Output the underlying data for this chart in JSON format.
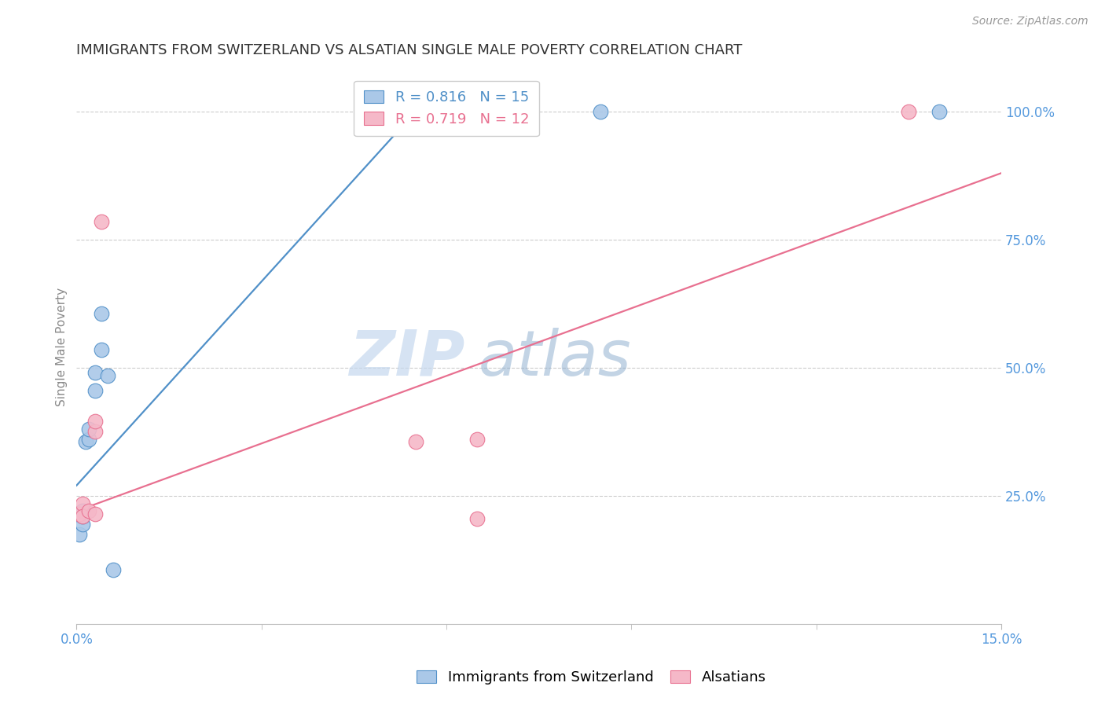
{
  "title": "IMMIGRANTS FROM SWITZERLAND VS ALSATIAN SINGLE MALE POVERTY CORRELATION CHART",
  "source": "Source: ZipAtlas.com",
  "ylabel": "Single Male Poverty",
  "xlim": [
    0.0,
    0.15
  ],
  "ylim": [
    0.0,
    1.08
  ],
  "xticks_major": [
    0.0,
    0.15
  ],
  "xticks_minor": [
    0.03,
    0.06,
    0.09,
    0.12
  ],
  "xticklabels_major": [
    "0.0%",
    "15.0%"
  ],
  "yticks_right": [
    0.25,
    0.5,
    0.75,
    1.0
  ],
  "ytick_right_labels": [
    "25.0%",
    "50.0%",
    "75.0%",
    "100.0%"
  ],
  "blue_scatter_x": [
    0.0005,
    0.001,
    0.001,
    0.001,
    0.0015,
    0.002,
    0.002,
    0.003,
    0.003,
    0.004,
    0.004,
    0.005,
    0.006,
    0.085,
    0.14
  ],
  "blue_scatter_y": [
    0.175,
    0.195,
    0.21,
    0.22,
    0.355,
    0.36,
    0.38,
    0.455,
    0.49,
    0.535,
    0.605,
    0.485,
    0.105,
    1.0,
    1.0
  ],
  "pink_scatter_x": [
    0.0005,
    0.001,
    0.001,
    0.002,
    0.003,
    0.003,
    0.003,
    0.004,
    0.055,
    0.065,
    0.065,
    0.135
  ],
  "pink_scatter_y": [
    0.215,
    0.235,
    0.21,
    0.22,
    0.375,
    0.395,
    0.215,
    0.785,
    0.355,
    0.36,
    0.205,
    1.0
  ],
  "blue_line_x": [
    0.0,
    0.055
  ],
  "blue_line_y": [
    0.27,
    1.0
  ],
  "pink_line_x": [
    0.0,
    0.15
  ],
  "pink_line_y": [
    0.22,
    0.88
  ],
  "blue_color": "#aac8e8",
  "pink_color": "#f5b8c8",
  "blue_line_color": "#5090c8",
  "pink_line_color": "#e87090",
  "blue_r": "R = 0.816",
  "blue_n": "N = 15",
  "pink_r": "R = 0.719",
  "pink_n": "N = 12",
  "legend_blue_label": "Immigrants from Switzerland",
  "legend_pink_label": "Alsatians",
  "watermark_zip": "ZIP",
  "watermark_atlas": "atlas",
  "scatter_size": 180,
  "background_color": "#ffffff",
  "grid_color": "#cccccc",
  "axis_color": "#bbbbbb",
  "right_axis_color": "#5599dd",
  "title_fontsize": 13,
  "label_fontsize": 11,
  "tick_fontsize": 12,
  "legend_fontsize": 13
}
